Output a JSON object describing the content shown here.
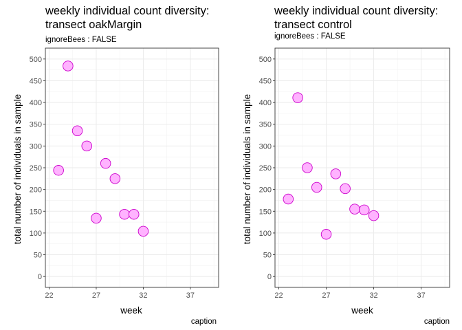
{
  "chart_data": [
    {
      "type": "scatter",
      "title": "weekly individual count diversity:",
      "title_line2": "transect oakMargin",
      "subtitle": "ignoreBees : FALSE",
      "xlabel": "week",
      "ylabel": "total number of individuals in sample",
      "caption": "caption",
      "xlim": [
        21.6,
        40
      ],
      "ylim": [
        -25,
        525
      ],
      "x_ticks": [
        22,
        27,
        32,
        37
      ],
      "y_ticks": [
        0,
        50,
        100,
        150,
        200,
        250,
        300,
        350,
        400,
        450,
        500
      ],
      "grid": true,
      "point_fill": "#ffb3ff",
      "point_stroke": "#cc00cc",
      "x": [
        23,
        24,
        25,
        26,
        27,
        28,
        29,
        30,
        31,
        32
      ],
      "y": [
        244,
        484,
        335,
        300,
        134,
        260,
        225,
        143,
        143,
        104
      ]
    },
    {
      "type": "scatter",
      "title": "weekly individual count diversity:",
      "title_line2": "transect control",
      "subtitle": "ignoreBees : FALSE",
      "xlabel": "week",
      "ylabel": "total number of individuals in sample",
      "caption": "caption",
      "xlim": [
        21.6,
        40
      ],
      "ylim": [
        -25,
        525
      ],
      "x_ticks": [
        22,
        27,
        32,
        37
      ],
      "y_ticks": [
        0,
        50,
        100,
        150,
        200,
        250,
        300,
        350,
        400,
        450,
        500
      ],
      "grid": true,
      "point_fill": "#ffb3ff",
      "point_stroke": "#cc00cc",
      "x": [
        23,
        24,
        25,
        26,
        27,
        28,
        29,
        30,
        31,
        32
      ],
      "y": [
        178,
        411,
        250,
        205,
        97,
        236,
        202,
        155,
        153,
        140
      ]
    }
  ]
}
